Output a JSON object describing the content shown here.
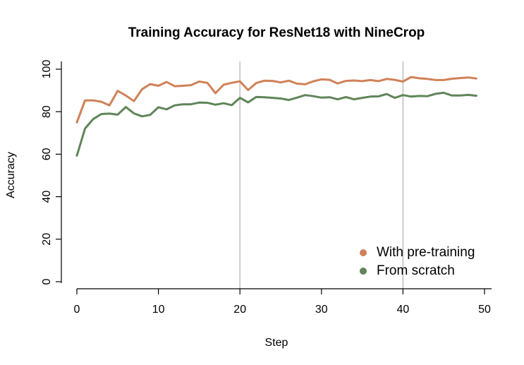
{
  "chart_data": {
    "type": "line",
    "title": "Training Accuracy for ResNet18 with NineCrop",
    "xlabel": "Step",
    "ylabel": "Accuracy",
    "xlim": [
      0,
      50
    ],
    "ylim": [
      0,
      100
    ],
    "x_ticks": [
      0,
      10,
      20,
      30,
      40,
      50
    ],
    "y_ticks": [
      0,
      20,
      40,
      60,
      80,
      100
    ],
    "vlines": [
      20,
      40
    ],
    "legend_position": "bottom-right",
    "x": [
      0,
      1,
      2,
      3,
      4,
      5,
      6,
      7,
      8,
      9,
      10,
      11,
      12,
      13,
      14,
      15,
      16,
      17,
      18,
      19,
      20,
      21,
      22,
      23,
      24,
      25,
      26,
      27,
      28,
      29,
      30,
      31,
      32,
      33,
      34,
      35,
      36,
      37,
      38,
      39,
      40,
      41,
      42,
      43,
      44,
      45,
      46,
      47,
      48,
      49
    ],
    "series": [
      {
        "name": "With pre-training",
        "color": "#D08158",
        "values": [
          75.0,
          85.3,
          85.3,
          84.7,
          83.0,
          89.8,
          87.6,
          85.0,
          90.6,
          93.0,
          92.2,
          94.0,
          92.0,
          92.2,
          92.5,
          94.2,
          93.6,
          88.7,
          92.7,
          93.6,
          94.3,
          90.2,
          93.5,
          94.6,
          94.5,
          93.8,
          94.6,
          93.2,
          92.9,
          94.3,
          95.2,
          95.0,
          93.3,
          94.5,
          94.7,
          94.4,
          94.9,
          94.4,
          95.4,
          95.0,
          94.2,
          96.3,
          95.7,
          95.4,
          94.9,
          94.9,
          95.5,
          95.8,
          96.1,
          95.6
        ]
      },
      {
        "name": "From scratch",
        "color": "#5F8558",
        "values": [
          59.3,
          72.1,
          76.5,
          78.9,
          79.1,
          78.6,
          82.2,
          79.2,
          77.8,
          78.5,
          82.1,
          81.1,
          83.0,
          83.5,
          83.5,
          84.3,
          84.2,
          83.3,
          84.0,
          83.1,
          86.5,
          84.4,
          86.9,
          86.8,
          86.5,
          86.2,
          85.5,
          86.6,
          87.8,
          87.3,
          86.6,
          86.8,
          85.8,
          86.9,
          85.8,
          86.5,
          87.1,
          87.2,
          88.3,
          86.5,
          87.8,
          87.1,
          87.4,
          87.3,
          88.4,
          88.9,
          87.6,
          87.6,
          87.9,
          87.5
        ]
      }
    ]
  }
}
